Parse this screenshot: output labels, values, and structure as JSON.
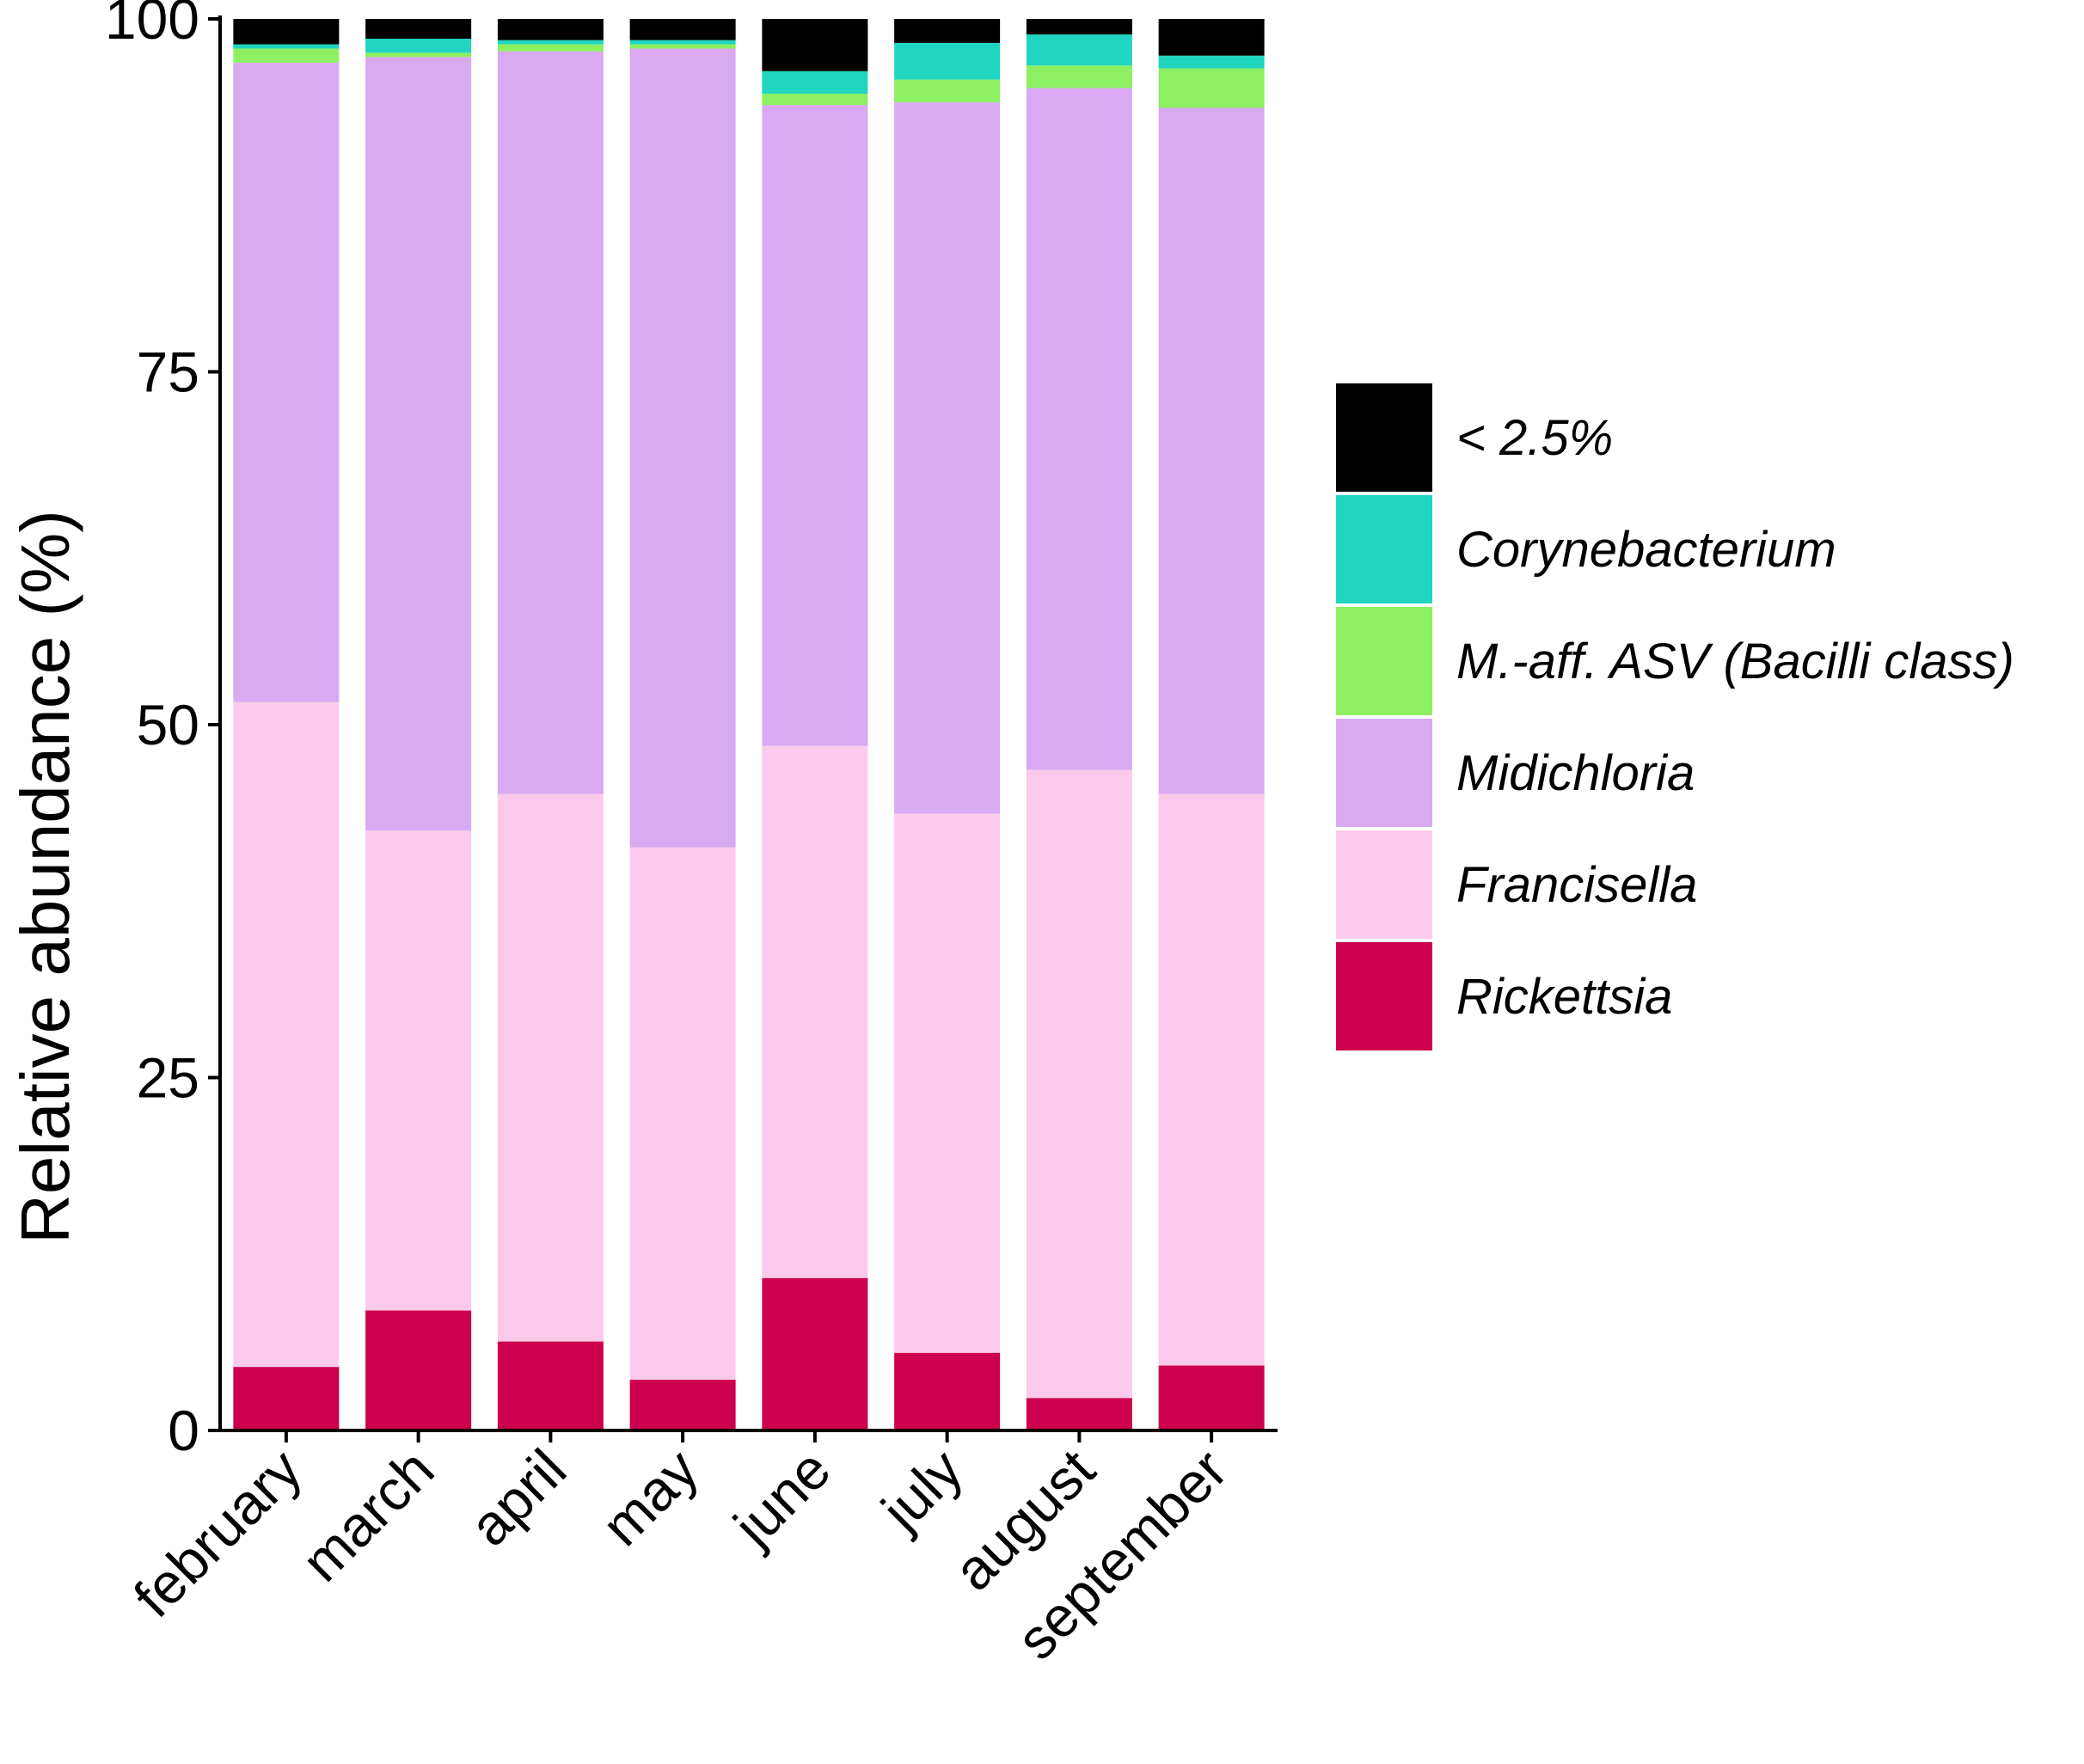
{
  "chart_data": {
    "type": "bar",
    "stacked": true,
    "title": "",
    "xlabel": "",
    "ylabel": "Relative abundance (%)",
    "ylim": [
      0,
      100
    ],
    "yticks": [
      0,
      25,
      50,
      75,
      100
    ],
    "categories": [
      "february",
      "march",
      "april",
      "may",
      "june",
      "july",
      "august",
      "september"
    ],
    "series": [
      {
        "name": "Rickettsia",
        "color": "#CC004C",
        "values": [
          4.5,
          8.5,
          6.3,
          3.6,
          10.8,
          5.5,
          2.3,
          4.6
        ]
      },
      {
        "name": "Francisella",
        "color": "#FCCAEB",
        "values": [
          47.1,
          34.0,
          38.8,
          37.7,
          37.7,
          38.2,
          44.5,
          40.5
        ]
      },
      {
        "name": "Midichloria",
        "color": "#D9A9F2",
        "values": [
          45.3,
          54.8,
          52.6,
          56.6,
          45.4,
          50.4,
          48.3,
          48.6
        ]
      },
      {
        "name": "M.-aff. ASV (Bacilli class)",
        "color": "#8CF062",
        "values": [
          1.0,
          0.3,
          0.5,
          0.3,
          0.8,
          1.6,
          1.6,
          2.8
        ]
      },
      {
        "name": "Corynebacterium",
        "color": "#20D6C0",
        "values": [
          0.3,
          1.0,
          0.3,
          0.3,
          1.6,
          2.6,
          2.2,
          0.9
        ]
      },
      {
        "name": "< 2.5%",
        "color": "#000000",
        "values": [
          1.8,
          1.4,
          1.5,
          1.5,
          3.7,
          1.7,
          1.1,
          2.6
        ]
      }
    ],
    "legend": {
      "position": "right",
      "order": [
        "< 2.5%",
        "Corynebacterium",
        "M.-aff. ASV (Bacilli class)",
        "Midichloria",
        "Francisella",
        "Rickettsia"
      ]
    },
    "grid": false
  }
}
